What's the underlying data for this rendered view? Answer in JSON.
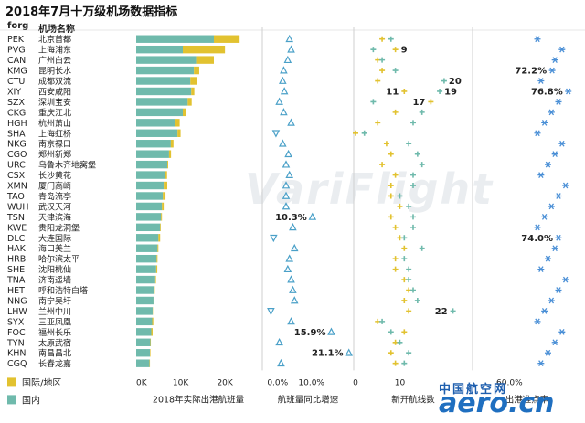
{
  "title": "2018年7月十万级机场数据指标",
  "headers": {
    "code": "forg",
    "name": "机场名称"
  },
  "legend": [
    {
      "label": "国际/地区",
      "color": "#e2c230"
    },
    {
      "label": "国内",
      "color": "#6fbaac"
    }
  ],
  "watermark": "VariFlight",
  "logo": {
    "cn": "中国航空网",
    "en": "aero.cn"
  },
  "colors": {
    "domestic": "#6fbaac",
    "international": "#e2c230",
    "triangle": "#4aa0c8",
    "yoy_marker": "#4aa0c8",
    "plus_intl": "#e2c230",
    "plus_dom": "#6fbaac",
    "asterisk": "#4a8fd6",
    "separator": "#cfcfcf"
  },
  "chart_data": {
    "type": "table",
    "airports": [
      {
        "code": "PEK",
        "name": "北京首都",
        "domestic": 17500,
        "international": 5800,
        "yoy": 3.5,
        "dom_new": 8,
        "intl_new": 6
      },
      {
        "code": "PVG",
        "name": "上海浦东",
        "domestic": 10500,
        "international": 9500,
        "yoy": 4.0,
        "dom_new": 4,
        "intl_new": 9,
        "label": "9"
      },
      {
        "code": "CAN",
        "name": "广州白云",
        "domestic": 13500,
        "international": 4000,
        "yoy": 3.0,
        "dom_new": 6,
        "intl_new": 5
      },
      {
        "code": "KMG",
        "name": "昆明长水",
        "domestic": 13000,
        "international": 1200,
        "yoy": 1.8,
        "dom_new": 9,
        "intl_new": 6,
        "punctuality": 72.2
      },
      {
        "code": "CTU",
        "name": "成都双流",
        "domestic": 12200,
        "international": 1500,
        "yoy": 1.5,
        "dom_new": 20,
        "intl_new": 5,
        "label": "20"
      },
      {
        "code": "XIY",
        "name": "西安咸阳",
        "domestic": 12400,
        "international": 700,
        "yoy": 2.0,
        "dom_new": 19,
        "intl_new": 11,
        "label": "11",
        "label2": "19",
        "punctuality": 76.8
      },
      {
        "code": "SZX",
        "name": "深圳宝安",
        "domestic": 11600,
        "international": 900,
        "yoy": 0.5,
        "dom_new": 4,
        "intl_new": 17,
        "label": "17"
      },
      {
        "code": "CKG",
        "name": "重庆江北",
        "domestic": 10500,
        "international": 700,
        "yoy": 1.8,
        "dom_new": 15,
        "intl_new": 9
      },
      {
        "code": "HGH",
        "name": "杭州萧山",
        "domestic": 8800,
        "international": 1000,
        "yoy": 4.0,
        "dom_new": 13,
        "intl_new": 5
      },
      {
        "code": "SHA",
        "name": "上海虹桥",
        "domestic": 9300,
        "international": 700,
        "yoy": -0.5,
        "dom_new": 2,
        "intl_new": 0
      },
      {
        "code": "NKG",
        "name": "南京禄口",
        "domestic": 7800,
        "international": 600,
        "yoy": 1.5,
        "dom_new": 12,
        "intl_new": 7
      },
      {
        "code": "CGO",
        "name": "郑州新郑",
        "domestic": 7400,
        "international": 450,
        "yoy": 3.2,
        "dom_new": 14,
        "intl_new": 8
      },
      {
        "code": "URC",
        "name": "乌鲁木齐地窝堡",
        "domestic": 7000,
        "international": 200,
        "yoy": 2.5,
        "dom_new": 15,
        "intl_new": 6
      },
      {
        "code": "CSX",
        "name": "长沙黄花",
        "domestic": 6500,
        "international": 450,
        "yoy": 3.5,
        "dom_new": 13,
        "intl_new": 9
      },
      {
        "code": "XMN",
        "name": "厦门高崎",
        "domestic": 6200,
        "international": 800,
        "yoy": 2.5,
        "dom_new": 13,
        "intl_new": 8
      },
      {
        "code": "TAO",
        "name": "青岛流亭",
        "domestic": 6000,
        "international": 600,
        "yoy": 2.5,
        "dom_new": 10,
        "intl_new": 8
      },
      {
        "code": "WUH",
        "name": "武汉天河",
        "domestic": 5800,
        "international": 400,
        "yoy": 2.5,
        "dom_new": 12,
        "intl_new": 10
      },
      {
        "code": "TSN",
        "name": "天津滨海",
        "domestic": 5600,
        "international": 200,
        "yoy": 10.3,
        "dom_new": 13,
        "intl_new": 8,
        "label": "10.3%"
      },
      {
        "code": "KWE",
        "name": "贵阳龙洞堡",
        "domestic": 5400,
        "international": 150,
        "yoy": 4.5,
        "dom_new": 13,
        "intl_new": 9
      },
      {
        "code": "DLC",
        "name": "大连国际",
        "domestic": 5000,
        "international": 400,
        "yoy": -1.2,
        "dom_new": 11,
        "intl_new": 10,
        "punctuality": 74.0
      },
      {
        "code": "HAK",
        "name": "海口美兰",
        "domestic": 4800,
        "international": 200,
        "yoy": 5.0,
        "dom_new": 15,
        "intl_new": 11
      },
      {
        "code": "HRB",
        "name": "哈尔滨太平",
        "domestic": 4600,
        "international": 200,
        "yoy": 3.5,
        "dom_new": 11,
        "intl_new": 9
      },
      {
        "code": "SHE",
        "name": "沈阳桃仙",
        "domestic": 4500,
        "international": 250,
        "yoy": 3.0,
        "dom_new": 12,
        "intl_new": 9
      },
      {
        "code": "TNA",
        "name": "济南遥墙",
        "domestic": 4300,
        "international": 150,
        "yoy": 4.0,
        "dom_new": 12,
        "intl_new": 11
      },
      {
        "code": "HET",
        "name": "呼和浩特白塔",
        "domestic": 4100,
        "international": 80,
        "yoy": 4.5,
        "dom_new": 13,
        "intl_new": 12
      },
      {
        "code": "NNG",
        "name": "南宁吴圩",
        "domestic": 3900,
        "international": 150,
        "yoy": 5.0,
        "dom_new": 14,
        "intl_new": 11
      },
      {
        "code": "LHW",
        "name": "兰州中川",
        "domestic": 3700,
        "international": 60,
        "yoy": -2.0,
        "dom_new": 22,
        "intl_new": 12,
        "label": "22"
      },
      {
        "code": "SYX",
        "name": "三亚凤凰",
        "domestic": 3600,
        "international": 250,
        "yoy": 4.0,
        "dom_new": 6,
        "intl_new": 5
      },
      {
        "code": "FOC",
        "name": "福州长乐",
        "domestic": 3400,
        "international": 300,
        "yoy": 15.9,
        "dom_new": 8,
        "intl_new": 11,
        "label": "15.9%"
      },
      {
        "code": "TYN",
        "name": "太原武宿",
        "domestic": 3200,
        "international": 100,
        "yoy": 0.5,
        "dom_new": 10,
        "intl_new": 9
      },
      {
        "code": "KHN",
        "name": "南昌昌北",
        "domestic": 3100,
        "international": 120,
        "yoy": 21.1,
        "dom_new": 12,
        "intl_new": 8,
        "label": "21.1%"
      },
      {
        "code": "CGQ",
        "name": "长春龙嘉",
        "domestic": 3000,
        "international": 100,
        "yoy": 1.0,
        "dom_new": 11,
        "intl_new": 9
      }
    ],
    "panels": [
      {
        "xlabel": "2018年实际出港航班量",
        "ticks": [
          "0K",
          "10K",
          "20K"
        ],
        "xlim": [
          0,
          28000
        ]
      },
      {
        "xlabel": "航班量同比增速",
        "ticks": [
          "0.0%",
          "10.0%"
        ],
        "xlim": [
          -4,
          22
        ]
      },
      {
        "xlabel": "新开航线数",
        "ticks": [
          "0",
          "10"
        ],
        "xlim": [
          0,
          26
        ]
      },
      {
        "xlabel": "出港准点率",
        "ticks": [
          "60.0%"
        ],
        "xlim": [
          50,
          80
        ]
      }
    ]
  }
}
